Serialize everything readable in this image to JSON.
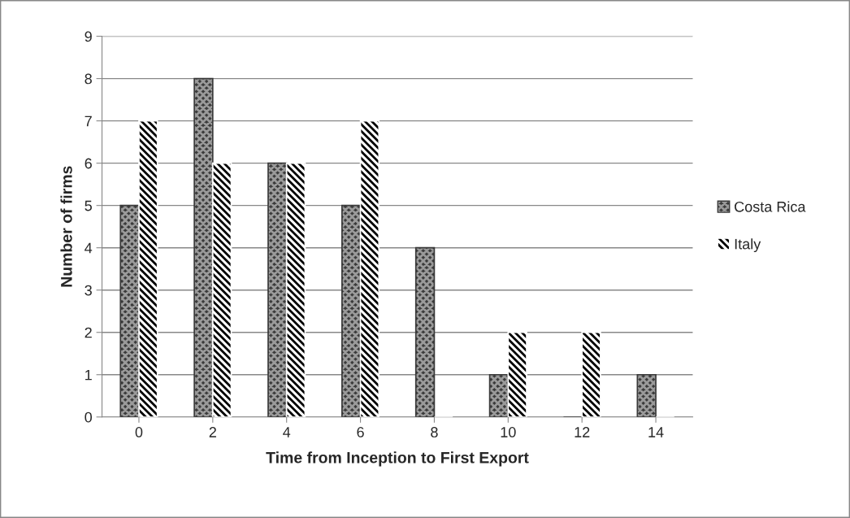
{
  "chart_data": {
    "type": "bar",
    "xlabel": "Time from Inception to First Export",
    "ylabel": "Number of firms",
    "categories": [
      "0",
      "2",
      "4",
      "6",
      "8",
      "10",
      "12",
      "14"
    ],
    "series": [
      {
        "name": "Costa Rica",
        "color": "#3a3a3a",
        "values": [
          5,
          8,
          6,
          5,
          4,
          1,
          0,
          1
        ]
      },
      {
        "name": "Italy",
        "color": "#ffffff",
        "values": [
          7,
          6,
          6,
          7,
          0,
          2,
          2,
          0
        ]
      }
    ],
    "ylim": [
      0,
      9
    ],
    "yticks": [
      0,
      1,
      2,
      3,
      4,
      5,
      6,
      7,
      8,
      9
    ],
    "grid": "y",
    "legend": "right"
  }
}
